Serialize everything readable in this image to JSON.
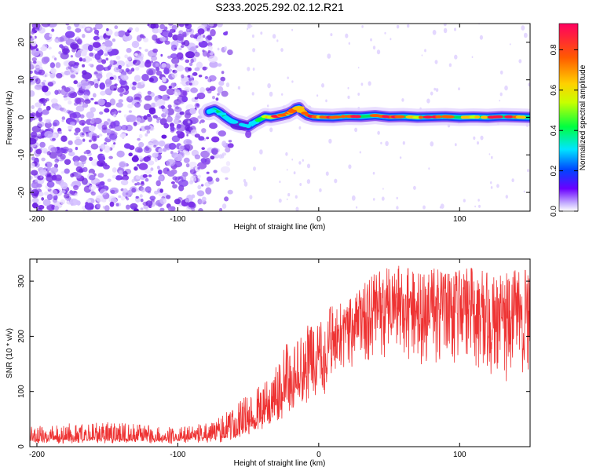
{
  "figure_title": "S233.2025.292.02.12.R21",
  "colors": {
    "snr_line": "#ee3333",
    "speckle": "#7a2ee8",
    "axis": "#000000"
  },
  "chart_data": [
    {
      "type": "heatmap",
      "title": "S233.2025.292.02.12.R21",
      "xlabel": "Height of straight line (km)",
      "ylabel": "Frequency (Hz)",
      "xlim": [
        -205,
        150
      ],
      "ylim": [
        -25,
        25
      ],
      "xticks": [
        -200,
        -100,
        0,
        100
      ],
      "yticks": [
        -20,
        -10,
        0,
        10,
        20
      ],
      "xtick_labels": [
        "-200",
        "-100",
        "0",
        "100"
      ],
      "ytick_labels": [
        "-20",
        "-10",
        "0",
        "10",
        "20"
      ],
      "colorbar": {
        "label": "Normalized spectral amplitude",
        "range": [
          0,
          0.93
        ],
        "ticks": [
          0.0,
          0.2,
          0.4,
          0.6,
          0.8
        ],
        "tick_labels": [
          "0.0",
          "0.2",
          "0.4",
          "0.6",
          "0.8"
        ],
        "colormap": [
          "#ffffff",
          "#6a00ff",
          "#0044ff",
          "#00e5ff",
          "#00ff40",
          "#c8ff00",
          "#ffd000",
          "#ff5a00",
          "#ff0060"
        ]
      },
      "noise_region_x": [
        -205,
        -75
      ],
      "carrier_trace": {
        "x": [
          -78,
          -74,
          -70,
          -66,
          -62,
          -58,
          -54,
          -50,
          -46,
          -42,
          -38,
          -34,
          -30,
          -26,
          -22,
          -18,
          -16,
          -14,
          -12,
          -8,
          -4,
          0,
          10,
          20,
          30,
          40,
          50,
          60,
          70,
          80,
          90,
          100,
          110,
          120,
          130,
          140,
          150
        ],
        "y": [
          1.5,
          2.0,
          1.2,
          0.0,
          -1.0,
          -1.6,
          -2.0,
          -2.4,
          -1.4,
          -0.6,
          0.2,
          0.0,
          0.3,
          0.6,
          1.0,
          1.8,
          2.4,
          2.6,
          1.6,
          0.6,
          0.2,
          0.1,
          0.0,
          0.3,
          0.2,
          0.5,
          0.1,
          0.2,
          0.0,
          0.1,
          0.2,
          0.0,
          0.1,
          0.0,
          0.2,
          0.1,
          0.0
        ],
        "amplitude": [
          0.35,
          0.45,
          0.3,
          0.35,
          0.25,
          0.3,
          0.2,
          0.3,
          0.4,
          0.55,
          0.6,
          0.75,
          0.85,
          0.8,
          0.75,
          0.85,
          0.8,
          0.7,
          0.75,
          0.85,
          0.9,
          0.85,
          0.9,
          0.85,
          0.9,
          0.8,
          0.9,
          0.85,
          0.75,
          0.9,
          0.85,
          0.8,
          0.7,
          0.85,
          0.9,
          0.8,
          0.75
        ]
      }
    },
    {
      "type": "line",
      "xlabel": "Height of straight line (km)",
      "ylabel": "SNR (10 * v/v)",
      "xlim": [
        -205,
        150
      ],
      "ylim": [
        0,
        340
      ],
      "xticks": [
        -200,
        -100,
        0,
        100
      ],
      "yticks": [
        0,
        100,
        200,
        300
      ],
      "xtick_labels": [
        "-200",
        "-100",
        "0",
        "100"
      ],
      "ytick_labels": [
        "0",
        "100",
        "200",
        "300"
      ],
      "series": [
        {
          "name": "SNR",
          "envelope_x": [
            -205,
            -150,
            -100,
            -75,
            -60,
            -50,
            -40,
            -30,
            -20,
            -10,
            0,
            10,
            20,
            30,
            40,
            50,
            60,
            70,
            80,
            90,
            100,
            110,
            120,
            130,
            140,
            150
          ],
          "envelope_min": [
            5,
            5,
            5,
            6,
            8,
            15,
            25,
            40,
            55,
            70,
            90,
            100,
            120,
            150,
            160,
            150,
            140,
            150,
            140,
            150,
            150,
            130,
            130,
            120,
            110,
            120
          ],
          "envelope_max": [
            40,
            45,
            35,
            45,
            75,
            95,
            120,
            160,
            200,
            215,
            240,
            260,
            270,
            290,
            315,
            325,
            330,
            315,
            330,
            325,
            320,
            330,
            320,
            315,
            325,
            320
          ],
          "typical": [
            15,
            15,
            15,
            18,
            30,
            45,
            60,
            85,
            110,
            135,
            170,
            195,
            215,
            235,
            250,
            255,
            255,
            250,
            255,
            255,
            250,
            250,
            245,
            245,
            240,
            240
          ]
        }
      ]
    }
  ]
}
